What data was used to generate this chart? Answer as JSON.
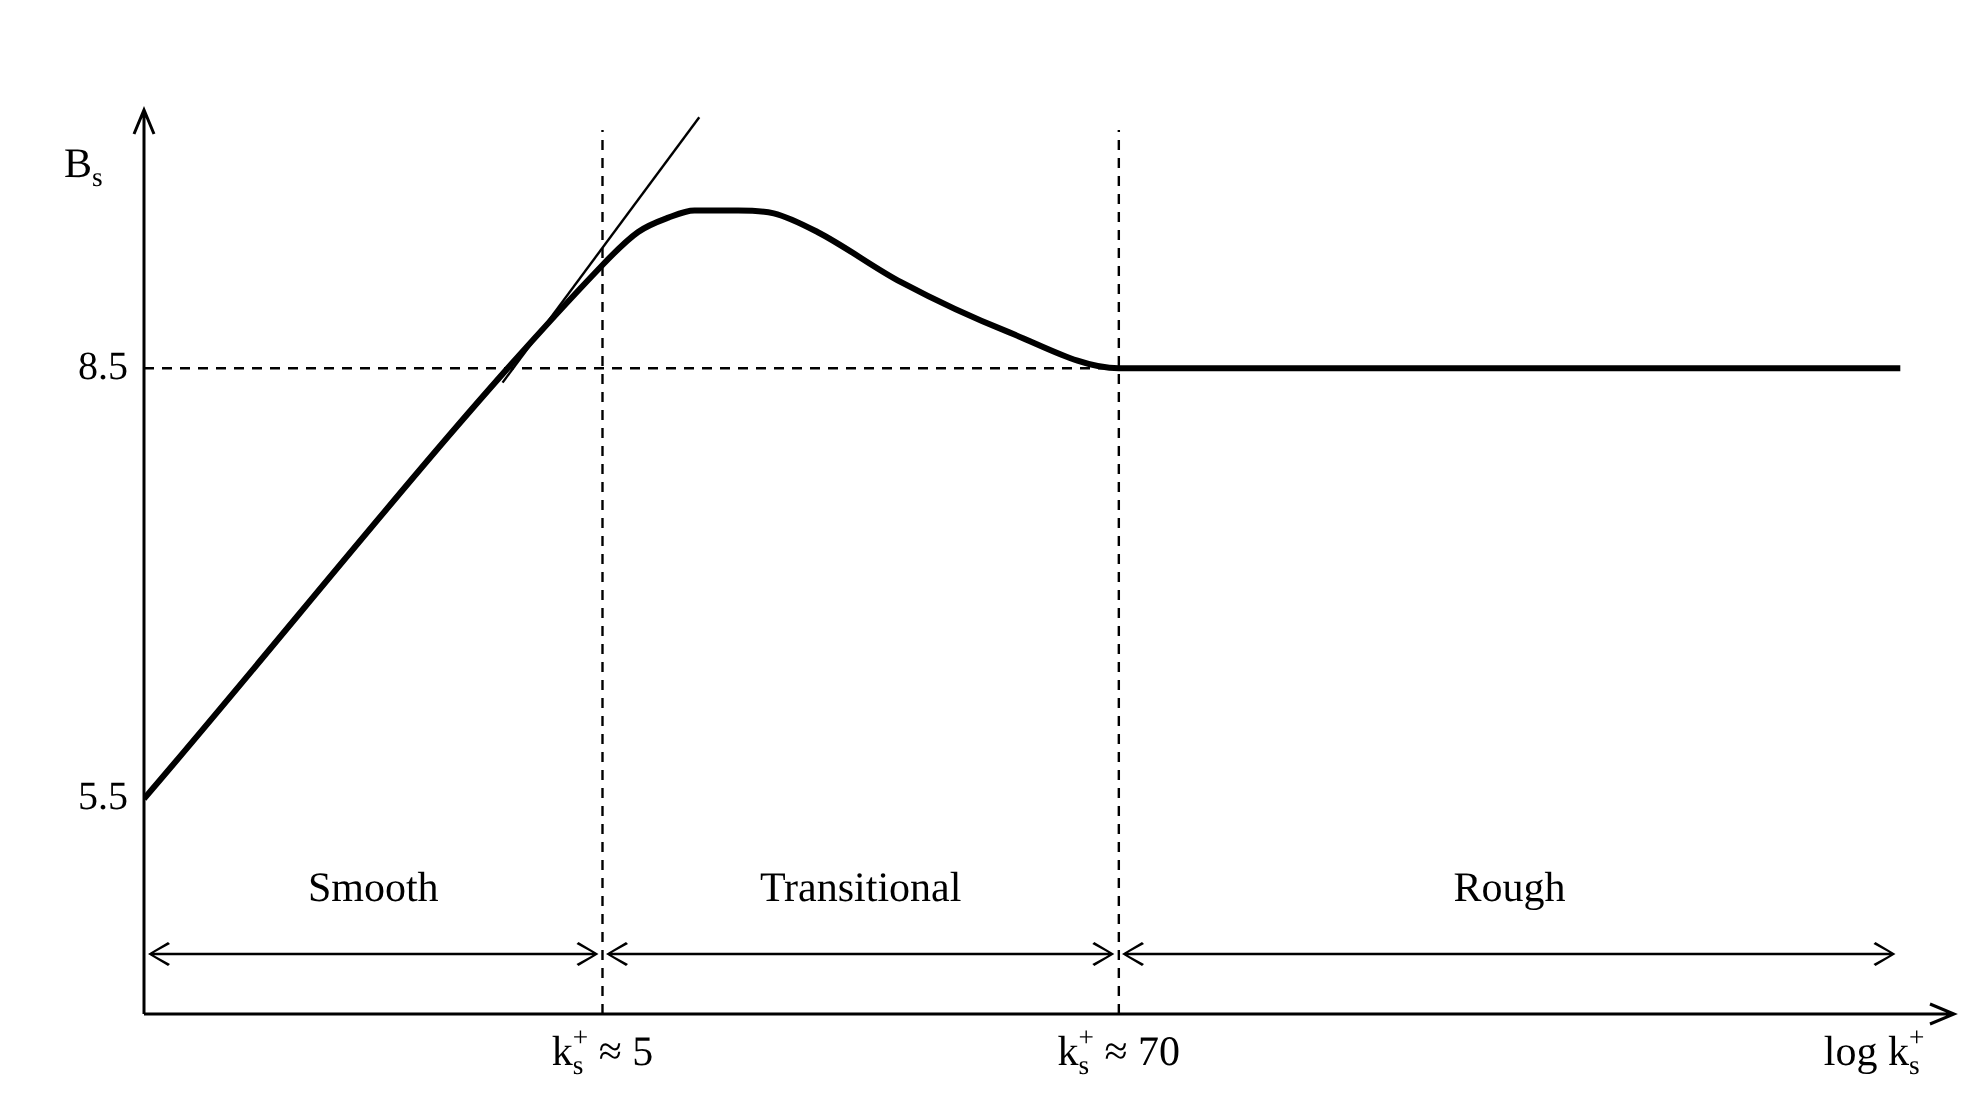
{
  "chart_data": {
    "type": "line",
    "ylabel": "B$_{s}$",
    "xlabel": "log k$_{s}$$^{+}$",
    "log": "x",
    "xlim": [
      0.48,
      5000
    ],
    "ylim": [
      4,
      10.3
    ],
    "xticks": [
      {
        "value": 5,
        "label": "k$_{s}$$^{+}$ ≈ 5"
      },
      {
        "value": 70,
        "label": "k$_{s}$$^{+}$ ≈ 70"
      }
    ],
    "yticks": [
      5.5,
      8.5
    ],
    "series": [
      {
        "color": "#000000",
        "x": [
          0.48,
          5,
          6,
          7,
          8,
          10,
          12,
          15,
          23,
          40,
          70,
          3800
        ],
        "values": [
          5.5,
          9.22,
          9.45,
          9.55,
          9.6,
          9.6,
          9.58,
          9.45,
          9.1,
          8.75,
          8.5,
          8.5
        ]
      },
      {
        "color": "#000000",
        "line_style": "solid",
        "x": [
          3,
          8.2
        ],
        "values": [
          8.4,
          10.25
        ]
      }
    ],
    "ref_lines": [
      {
        "axis": "x",
        "value": 5,
        "line_style": "dashed",
        "color": "#000000"
      },
      {
        "axis": "x",
        "value": 70,
        "line_style": "dashed",
        "color": "#000000"
      },
      {
        "axis": "y",
        "value": 8.5,
        "line_style": "dashed",
        "color": "#000000"
      }
    ],
    "annotations": [
      "Smooth",
      "Transitional",
      "Rough"
    ],
    "marker": "none",
    "grid": false,
    "legend": false
  }
}
